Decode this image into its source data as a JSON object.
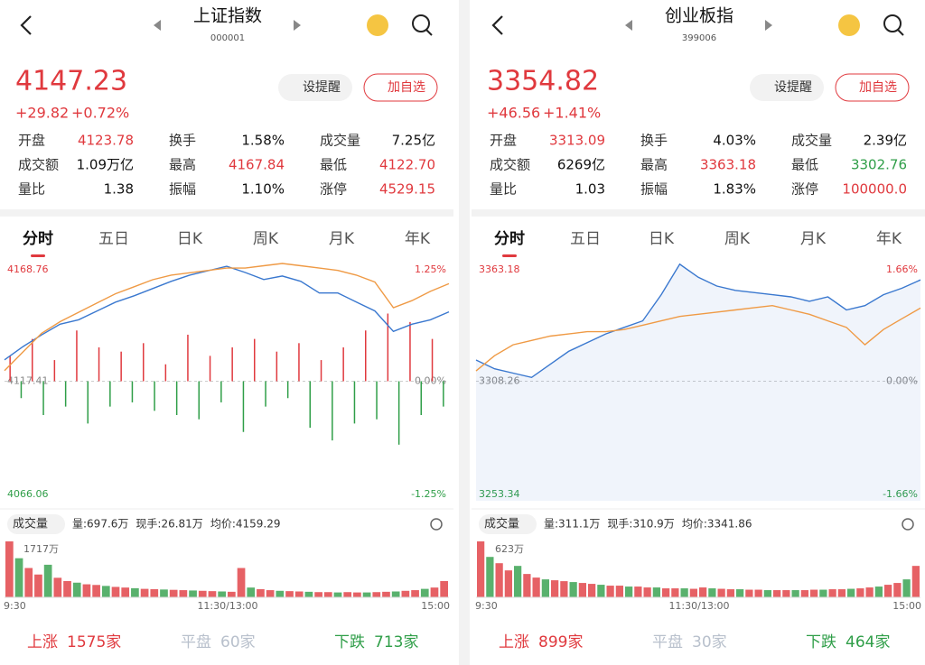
{
  "panels": [
    {
      "title": "上证指数",
      "code": "000001",
      "price": "4147.23",
      "change": "+29.82",
      "change_pct": "+0.72%",
      "buttons": [
        "设提醒",
        "加自选"
      ],
      "stats": [
        {
          "label": "开盘",
          "value": "4123.78",
          "color": "#e0393e"
        },
        {
          "label": "换手",
          "value": "1.58%"
        },
        {
          "label": "成交量",
          "value": "7.25亿"
        },
        {
          "label": "成交额",
          "value": "1.09万亿"
        },
        {
          "label": "最高",
          "value": "4167.84",
          "color": "#e0393e"
        },
        {
          "label": "最低",
          "value": "4122.70",
          "color": "#e0393e"
        },
        {
          "label": "量比",
          "value": "1.38"
        },
        {
          "label": "振幅",
          "value": "1.10%"
        },
        {
          "label": "涨停",
          "value": "4529.15",
          "color": "#e0393e"
        }
      ],
      "tabs": [
        "分时",
        "五日",
        "日K",
        "周K",
        "月K",
        "年K"
      ],
      "chart": {
        "ylim": [
          4066.06,
          4168.76
        ],
        "yticks": [
          4168.76,
          4117.41,
          4066.06
        ],
        "y2lim": [
          -1.25,
          1.25
        ],
        "y2ticks": [
          {
            "value": 1.25,
            "label": "1.25%"
          },
          {
            "value": 0,
            "label": "0.00%"
          },
          {
            "value": -1.25,
            "label": "-1.25%"
          }
        ],
        "fill_area": false,
        "series": [
          {
            "color": "#3a78cf",
            "values": [
              4126.6,
              4132.3,
              4137.3,
              4141.9,
              4143.8,
              4147.6,
              4151.4,
              4154.1,
              4157.2,
              4160.3,
              4163.0,
              4164.9,
              4166.8,
              4164.1,
              4161.1,
              4162.6,
              4160.3,
              4155.3,
              4155.3,
              4151.4,
              4147.6,
              4138.8,
              4141.9,
              4143.8,
              4147.23
            ]
          },
          {
            "color": "#ef9a45",
            "values": [
              4122,
              4130,
              4138,
              4143,
              4147,
              4151,
              4155,
              4158,
              4161,
              4163,
              4164,
              4165,
              4166,
              4166,
              4167,
              4168,
              4167,
              4166,
              4165,
              4163,
              4160,
              4149,
              4152,
              4156,
              4159.29
            ]
          }
        ],
        "diff_bars": [
          30,
          -20,
          50,
          -40,
          25,
          -30,
          60,
          -50,
          40,
          -30,
          35,
          -25,
          45,
          -35,
          20,
          -40,
          55,
          -45,
          30,
          -25,
          40,
          -60,
          50,
          -30,
          35,
          -20,
          45,
          -55,
          25,
          -70,
          40,
          -50,
          60,
          -45,
          80,
          -75,
          70,
          -40,
          50,
          -30
        ]
      },
      "volume": {
        "label": "成交量",
        "info": [
          "量:697.6万",
          "现手:26.81万",
          "均价:4159.29"
        ],
        "ylim": [
          0,
          1717
        ],
        "yticks": [
          {
            "value": 1717,
            "label": "1717万"
          }
        ],
        "values": [
          1717,
          1200,
          900,
          700,
          1000,
          600,
          500,
          450,
          400,
          380,
          350,
          320,
          300,
          280,
          260,
          250,
          240,
          230,
          220,
          210,
          200,
          190,
          180,
          170,
          900,
          300,
          250,
          220,
          200,
          190,
          180,
          170,
          160,
          160,
          150,
          160,
          150,
          150,
          160,
          170,
          180,
          200,
          220,
          260,
          300,
          500
        ],
        "times": [
          "9:30",
          "11:30/13:00",
          "15:00"
        ]
      },
      "breadth": [
        {
          "label": "上涨",
          "value": "1575家"
        },
        {
          "label": "平盘",
          "value": "60家"
        },
        {
          "label": "下跌",
          "value": "713家"
        }
      ]
    },
    {
      "title": "创业板指",
      "code": "399006",
      "price": "3354.82",
      "change": "+46.56",
      "change_pct": "+1.41%",
      "buttons": [
        "设提醒",
        "加自选"
      ],
      "stats": [
        {
          "label": "开盘",
          "value": "3313.09",
          "color": "#e0393e"
        },
        {
          "label": "换手",
          "value": "4.03%"
        },
        {
          "label": "成交量",
          "value": "2.39亿"
        },
        {
          "label": "成交额",
          "value": "6269亿"
        },
        {
          "label": "最高",
          "value": "3363.18",
          "color": "#e0393e"
        },
        {
          "label": "最低",
          "value": "3302.76",
          "color": "#2f9e48"
        },
        {
          "label": "量比",
          "value": "1.03"
        },
        {
          "label": "振幅",
          "value": "1.83%"
        },
        {
          "label": "涨停",
          "value": "100000.0",
          "color": "#e0393e"
        }
      ],
      "tabs": [
        "分时",
        "五日",
        "日K",
        "周K",
        "月K",
        "年K"
      ],
      "chart": {
        "ylim": [
          3253.34,
          3363.18
        ],
        "yticks": [
          3363.18,
          3308.26,
          3253.34
        ],
        "y2lim": [
          -1.66,
          1.66
        ],
        "y2ticks": [
          {
            "value": 1.66,
            "label": "1.66%"
          },
          {
            "value": 0,
            "label": "0.00%"
          },
          {
            "value": -1.66,
            "label": "-1.66%"
          }
        ],
        "fill_area": true,
        "series": [
          {
            "color": "#3a78cf",
            "values": [
              3318,
              3314,
              3312,
              3310,
              3316,
              3322,
              3326,
              3330,
              3333,
              3336,
              3348,
              3362,
              3356,
              3352,
              3350,
              3349,
              3348,
              3347,
              3345,
              3347,
              3341,
              3343,
              3348,
              3351,
              3354.82
            ]
          },
          {
            "color": "#ef9a45",
            "values": [
              3313,
              3320,
              3325,
              3327,
              3329,
              3330,
              3331,
              3331,
              3332,
              3334,
              3336,
              3338,
              3339,
              3340,
              3341,
              3342,
              3343,
              3341,
              3339,
              3336,
              3333,
              3325,
              3332,
              3337,
              3341.86
            ]
          }
        ]
      },
      "volume": {
        "label": "成交量",
        "info": [
          "量:311.1万",
          "现手:310.9万",
          "均价:3341.86"
        ],
        "ylim": [
          0,
          623
        ],
        "yticks": [
          {
            "value": 623,
            "label": "623万"
          }
        ],
        "values": [
          623,
          450,
          380,
          300,
          350,
          260,
          220,
          200,
          190,
          180,
          170,
          160,
          150,
          140,
          130,
          130,
          120,
          120,
          110,
          110,
          100,
          100,
          100,
          95,
          110,
          100,
          95,
          90,
          90,
          85,
          85,
          80,
          80,
          80,
          80,
          80,
          85,
          85,
          90,
          90,
          95,
          100,
          110,
          120,
          140,
          160,
          200,
          350
        ],
        "times": [
          "9:30",
          "11:30/13:00",
          "15:00"
        ]
      },
      "breadth": [
        {
          "label": "上涨",
          "value": "899家"
        },
        {
          "label": "平盘",
          "value": "30家"
        },
        {
          "label": "下跌",
          "value": "464家"
        }
      ]
    }
  ]
}
